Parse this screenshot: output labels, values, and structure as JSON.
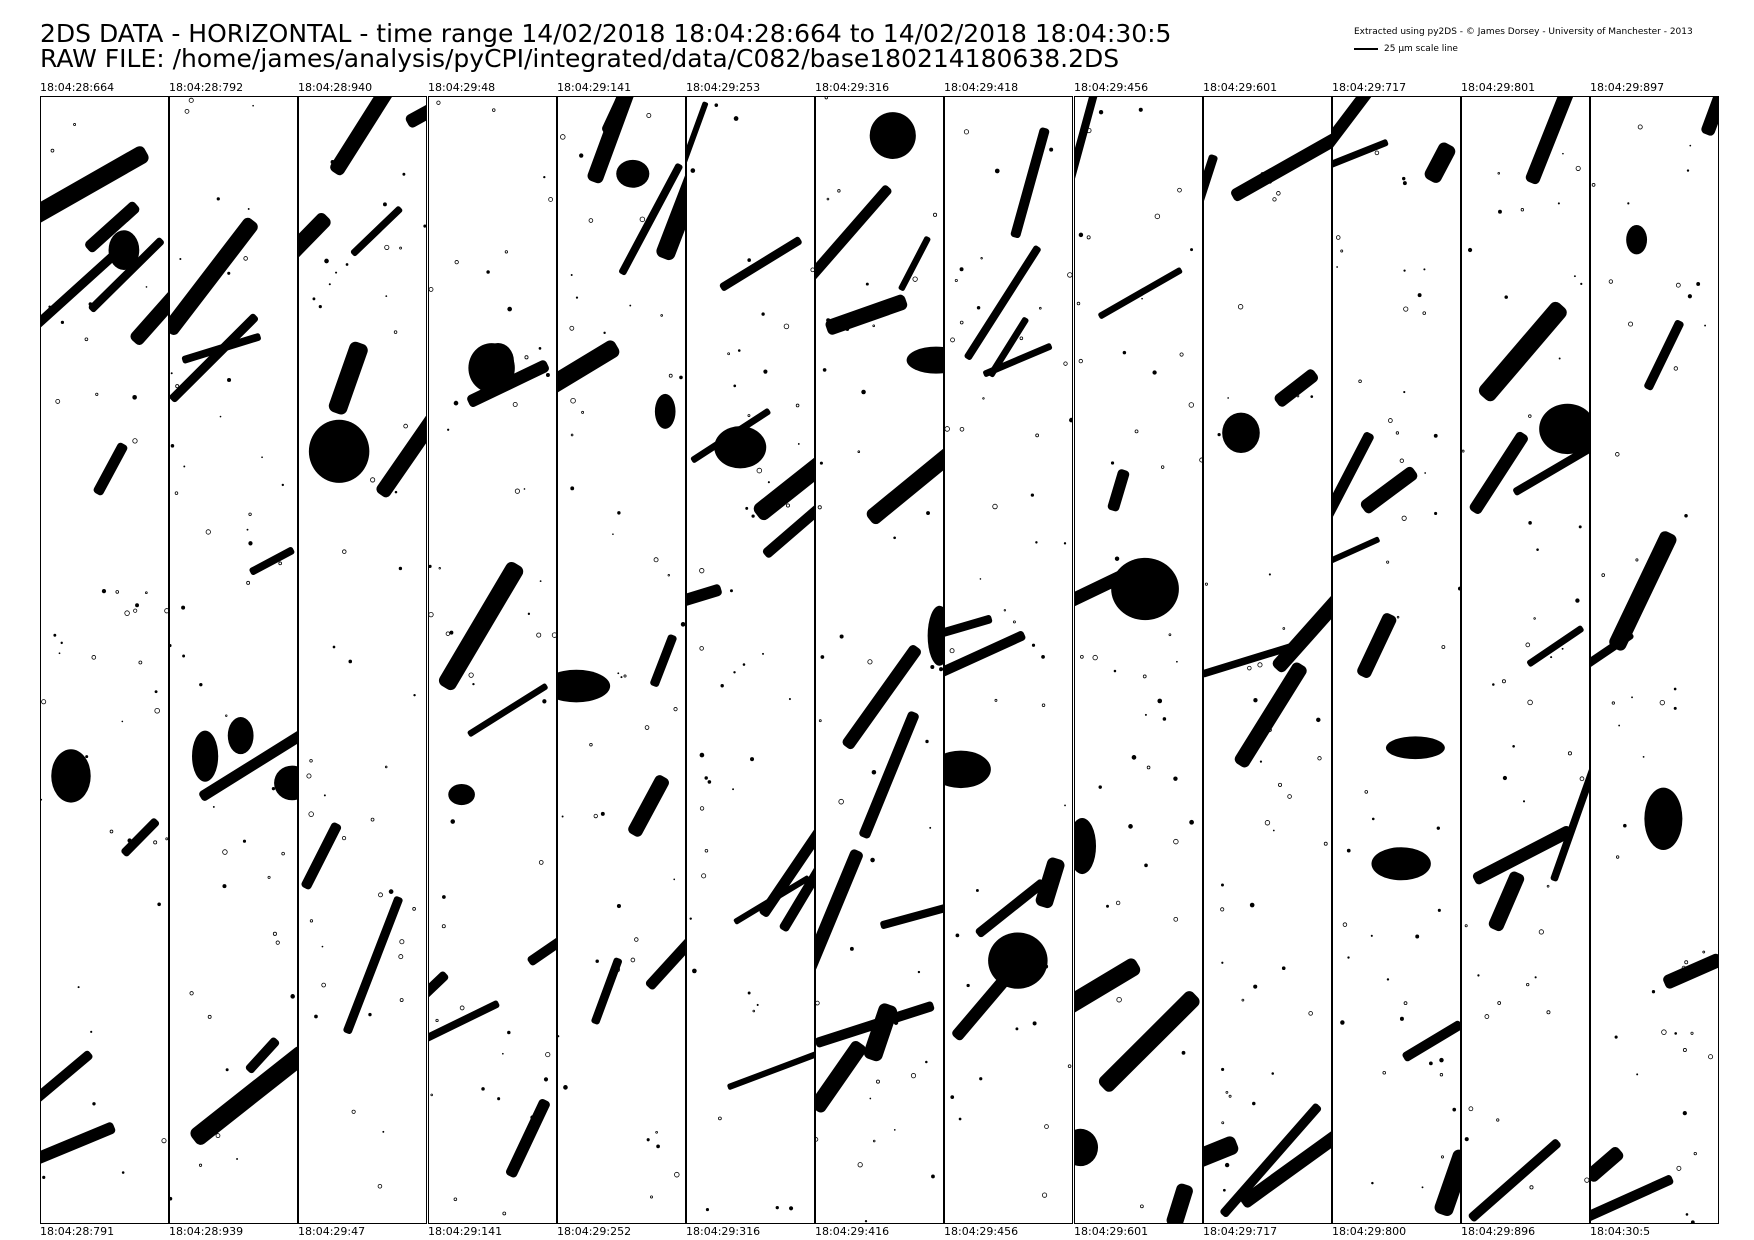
{
  "header": {
    "title_line1": "2DS DATA - HORIZONTAL - time range 14/02/2018 18:04:28:664 to 14/02/2018 18:04:30:5",
    "title_line2": "RAW FILE: /home/james/analysis/pyCPI/integrated/data/C082/base180214180638.2DS",
    "credit": "Extracted using py2DS - © James Dorsey - University of Manchester - 2013",
    "scale_label": "25 µm scale line"
  },
  "strips": [
    {
      "start": "18:04:28:664",
      "end": "18:04:28:791"
    },
    {
      "start": "18:04:28:792",
      "end": "18:04:28:939"
    },
    {
      "start": "18:04:28:940",
      "end": "18:04:29:47"
    },
    {
      "start": "18:04:29:48",
      "end": "18:04:29:141"
    },
    {
      "start": "18:04:29:141",
      "end": "18:04:29:252"
    },
    {
      "start": "18:04:29:253",
      "end": "18:04:29:316"
    },
    {
      "start": "18:04:29:316",
      "end": "18:04:29:416"
    },
    {
      "start": "18:04:29:418",
      "end": "18:04:29:456"
    },
    {
      "start": "18:04:29:456",
      "end": "18:04:29:601"
    },
    {
      "start": "18:04:29:601",
      "end": "18:04:29:717"
    },
    {
      "start": "18:04:29:717",
      "end": "18:04:29:800"
    },
    {
      "start": "18:04:29:801",
      "end": "18:04:29:896"
    },
    {
      "start": "18:04:29:897",
      "end": "18:04:30:5"
    }
  ],
  "colors": {
    "ink": "#000000",
    "background": "#ffffff"
  }
}
